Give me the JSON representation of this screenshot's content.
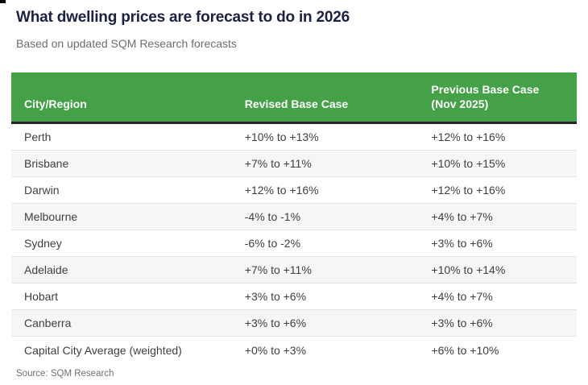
{
  "header": {
    "title": "What dwelling prices are forecast to do in 2026",
    "subtitle": "Based on updated SQM Research forecasts"
  },
  "table": {
    "columns": [
      "City/Region",
      "Revised Base Case",
      "Previous Base Case (Nov 2025)"
    ],
    "rows": [
      {
        "city": "Perth",
        "revised": "+10% to +13%",
        "previous": "+12% to +16%"
      },
      {
        "city": "Brisbane",
        "revised": "+7% to +11%",
        "previous": "+10% to +15%"
      },
      {
        "city": "Darwin",
        "revised": "+12% to +16%",
        "previous": "+12% to +16%"
      },
      {
        "city": "Melbourne",
        "revised": "-4% to -1%",
        "previous": "+4% to +7%"
      },
      {
        "city": "Sydney",
        "revised": "-6% to -2%",
        "previous": "+3% to +6%"
      },
      {
        "city": "Adelaide",
        "revised": "+7% to +11%",
        "previous": "+10% to +14%"
      },
      {
        "city": "Hobart",
        "revised": "+3% to +6%",
        "previous": "+4% to +7%"
      },
      {
        "city": "Canberra",
        "revised": "+3% to +6%",
        "previous": "+3% to +6%"
      },
      {
        "city": "Capital City Average (weighted)",
        "revised": "+0% to +3%",
        "previous": "+6% to +10%"
      }
    ]
  },
  "footer": {
    "source": "Source: SQM Research"
  },
  "colors": {
    "header_green": "#44a148",
    "header_divider": "#262626",
    "title_navy": "#1b2142",
    "body_text": "#3f3f3f",
    "muted_text": "#6d6d6d",
    "row_shaded": "#f6f6f6",
    "row_divider": "#e4e4e4"
  },
  "chart_data": {
    "type": "table",
    "title": "What dwelling prices are forecast to do in 2026",
    "subtitle": "Based on updated SQM Research forecasts",
    "columns": [
      "City/Region",
      "Revised Base Case",
      "Previous Base Case (Nov 2025)"
    ],
    "rows": [
      [
        "Perth",
        "+10% to +13%",
        "+12% to +16%"
      ],
      [
        "Brisbane",
        "+7% to +11%",
        "+10% to +15%"
      ],
      [
        "Darwin",
        "+12% to +16%",
        "+12% to +16%"
      ],
      [
        "Melbourne",
        "-4% to -1%",
        "+4% to +7%"
      ],
      [
        "Sydney",
        "-6% to -2%",
        "+3% to +6%"
      ],
      [
        "Adelaide",
        "+7% to +11%",
        "+10% to +14%"
      ],
      [
        "Hobart",
        "+3% to +6%",
        "+4% to +7%"
      ],
      [
        "Canberra",
        "+3% to +6%",
        "+3% to +6%"
      ],
      [
        "Capital City Average (weighted)",
        "+0% to +3%",
        "+6% to +10%"
      ]
    ],
    "source": "Source: SQM Research",
    "layout_hints": {
      "header_background": "#44a148",
      "alternating_row_shading": [
        "white",
        "#f6f6f6"
      ],
      "grid": "horizontal-dividers-only"
    }
  }
}
